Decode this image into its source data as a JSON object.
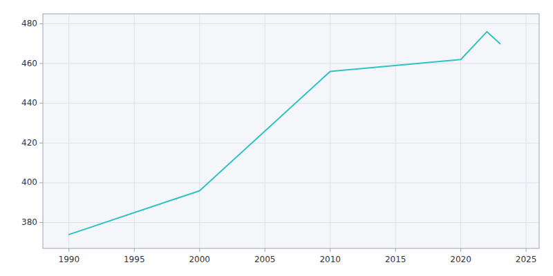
{
  "chart_data": {
    "type": "line",
    "x": [
      1990,
      2000,
      2010,
      2020,
      2022,
      2023
    ],
    "values": [
      374,
      396,
      456,
      462,
      476,
      470
    ],
    "color": "#2EC4C4",
    "xlim": [
      1988,
      2026
    ],
    "ylim": [
      367,
      485
    ],
    "xticks": [
      1990,
      1995,
      2000,
      2005,
      2010,
      2015,
      2020,
      2025
    ],
    "yticks": [
      380,
      400,
      420,
      440,
      460,
      480
    ],
    "grid": true
  }
}
